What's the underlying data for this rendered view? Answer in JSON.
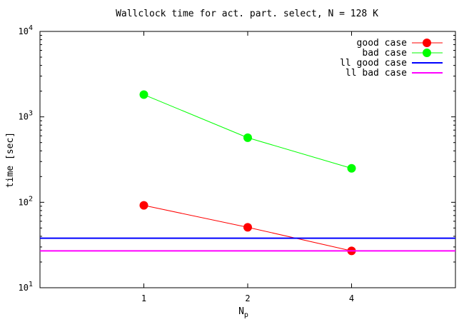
{
  "chart_data": {
    "type": "line",
    "title": "Wallclock time for act. part. select, N = 128 K",
    "xlabel": "N",
    "xlabel_subscript": "p",
    "ylabel": "time [sec]",
    "y_scale": "log",
    "ylim": [
      10,
      10000
    ],
    "x_positions": [
      0,
      1,
      2,
      3,
      4
    ],
    "categories": [
      "1",
      "2",
      "4"
    ],
    "y_ticks": [
      {
        "value": 10,
        "base": "10",
        "exp": "1"
      },
      {
        "value": 100,
        "base": "10",
        "exp": "2"
      },
      {
        "value": 1000,
        "base": "10",
        "exp": "3"
      },
      {
        "value": 10000,
        "base": "10",
        "exp": "4"
      }
    ],
    "legend_position": "top-right",
    "grid": false,
    "series": [
      {
        "name": "good case",
        "kind": "points",
        "color": "#ff0000",
        "x": [
          1,
          2,
          3
        ],
        "y": [
          92,
          51,
          27
        ]
      },
      {
        "name": "bad case",
        "kind": "points",
        "color": "#00ff00",
        "x": [
          1,
          2,
          3
        ],
        "y": [
          1820,
          570,
          250
        ]
      },
      {
        "name": "ll good case",
        "kind": "hline",
        "color": "#0000ff",
        "y": 38
      },
      {
        "name": "ll bad case",
        "kind": "hline",
        "color": "#ff00ff",
        "y": 27
      }
    ]
  }
}
